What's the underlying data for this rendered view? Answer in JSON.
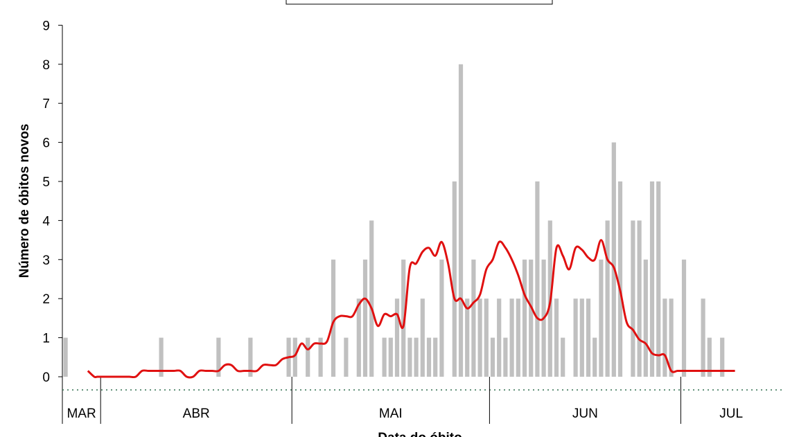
{
  "chart_data": {
    "type": "bar",
    "title": "",
    "xlabel": "Data do óbito",
    "ylabel": "Número de óbitos novos",
    "ylim": [
      0,
      9
    ],
    "yticks": [
      "0",
      "1",
      "2",
      "3",
      "4",
      "5",
      "6",
      "7",
      "8",
      "9"
    ],
    "months": [
      {
        "label": "MAR",
        "start": 0,
        "end": 6
      },
      {
        "label": "ABR",
        "start": 6,
        "end": 36
      },
      {
        "label": "MAI",
        "start": 36,
        "end": 67
      },
      {
        "label": "JUN",
        "start": 67,
        "end": 97
      },
      {
        "label": "JUL",
        "start": 97,
        "end": 113
      }
    ],
    "series": [
      {
        "name": "",
        "type": "bar",
        "color": "#c0c0c0",
        "values": [
          1,
          0,
          0,
          0,
          0,
          0,
          0,
          0,
          0,
          0,
          0,
          0,
          0,
          0,
          0,
          1,
          0,
          0,
          0,
          0,
          0,
          0,
          0,
          0,
          1,
          0,
          0,
          0,
          0,
          1,
          0,
          0,
          0,
          0,
          0,
          1,
          1,
          0,
          1,
          0,
          1,
          0,
          3,
          0,
          1,
          0,
          2,
          3,
          4,
          0,
          1,
          1,
          2,
          3,
          1,
          1,
          2,
          1,
          1,
          3,
          0,
          5,
          8,
          2,
          3,
          2,
          2,
          1,
          2,
          1,
          2,
          2,
          3,
          3,
          5,
          3,
          4,
          2,
          1,
          0,
          2,
          2,
          2,
          1,
          3,
          4,
          6,
          5,
          0,
          4,
          4,
          3,
          5,
          5,
          2,
          2,
          0,
          3,
          0,
          0,
          2,
          1,
          0,
          1
        ]
      },
      {
        "name": "",
        "type": "line",
        "color": "#e01010",
        "x": [
          3.5,
          4.5,
          5,
          6,
          7,
          8,
          9,
          10,
          11,
          12,
          13,
          14,
          15,
          16,
          17,
          18,
          19,
          20,
          21,
          22,
          23,
          24,
          25,
          26,
          27,
          28,
          29,
          30,
          31,
          32,
          33,
          34,
          35,
          36,
          37,
          38,
          39,
          40,
          41,
          42,
          43,
          44,
          45,
          46,
          47,
          48,
          49,
          50,
          51,
          52,
          53,
          54,
          55,
          56,
          57,
          58,
          59,
          60,
          61,
          62,
          63,
          64,
          65,
          66,
          67,
          68,
          69,
          70,
          71,
          72,
          73,
          74,
          75,
          76,
          77,
          78,
          79,
          80,
          81,
          82,
          83,
          84,
          85,
          86,
          87,
          88,
          89,
          90,
          91,
          92,
          93,
          94,
          95,
          96,
          97,
          98,
          99,
          100,
          101,
          102,
          103,
          104,
          105
        ],
        "y": [
          0.15,
          0.0,
          0.0,
          0.0,
          0.0,
          0.0,
          0.0,
          0.0,
          0.0,
          0.15,
          0.15,
          0.15,
          0.15,
          0.15,
          0.15,
          0.15,
          0.0,
          0.0,
          0.15,
          0.15,
          0.15,
          0.15,
          0.3,
          0.3,
          0.15,
          0.15,
          0.15,
          0.15,
          0.3,
          0.3,
          0.3,
          0.45,
          0.5,
          0.55,
          0.85,
          0.7,
          0.85,
          0.85,
          0.9,
          1.4,
          1.55,
          1.55,
          1.55,
          1.85,
          2.0,
          1.75,
          1.3,
          1.6,
          1.55,
          1.6,
          1.3,
          2.8,
          2.9,
          3.2,
          3.3,
          3.1,
          3.45,
          2.9,
          2.0,
          2.0,
          1.75,
          1.9,
          2.1,
          2.75,
          3.0,
          3.45,
          3.3,
          3.0,
          2.6,
          2.1,
          1.8,
          1.5,
          1.5,
          1.9,
          3.3,
          3.1,
          2.75,
          3.3,
          3.25,
          3.05,
          3.0,
          3.5,
          3.0,
          2.8,
          2.2,
          1.4,
          1.2,
          0.95,
          0.85,
          0.6,
          0.55,
          0.55,
          0.15,
          0.15,
          0.15,
          0.15,
          0.15,
          0.15,
          0.15,
          0.15,
          0.15,
          0.15,
          0.15
        ]
      }
    ]
  }
}
